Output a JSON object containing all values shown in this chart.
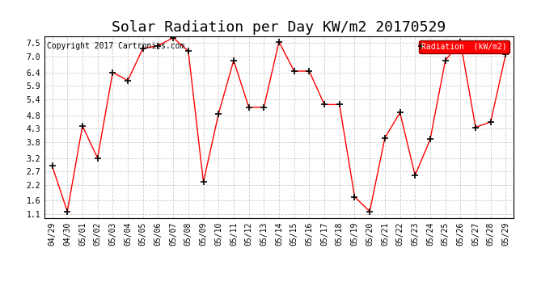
{
  "title": "Solar Radiation per Day KW/m2 20170529",
  "copyright": "Copyright 2017 Cartronics.com",
  "legend_label": "Radiation  (kW/m2)",
  "dates": [
    "04/29",
    "04/30",
    "05/01",
    "05/02",
    "05/03",
    "05/04",
    "05/05",
    "05/06",
    "05/07",
    "05/08",
    "05/09",
    "05/10",
    "05/11",
    "05/12",
    "05/13",
    "05/14",
    "05/15",
    "05/16",
    "05/17",
    "05/18",
    "05/19",
    "05/20",
    "05/21",
    "05/22",
    "05/23",
    "05/24",
    "05/25",
    "05/26",
    "05/27",
    "05/28",
    "05/29"
  ],
  "values": [
    2.9,
    1.2,
    4.4,
    3.2,
    6.4,
    6.1,
    7.3,
    7.4,
    7.7,
    7.2,
    2.3,
    4.85,
    6.85,
    5.1,
    5.1,
    7.55,
    6.45,
    6.45,
    5.2,
    5.2,
    1.75,
    1.2,
    3.95,
    4.9,
    2.55,
    3.9,
    6.85,
    7.55,
    4.35,
    4.55,
    7.1
  ],
  "line_color": "red",
  "marker": "+",
  "marker_color": "black",
  "bg_color": "#ffffff",
  "grid_color": "#cccccc",
  "ylim": [
    0.95,
    7.75
  ],
  "yticks": [
    1.1,
    1.6,
    2.2,
    2.7,
    3.2,
    3.8,
    4.3,
    4.8,
    5.4,
    5.9,
    6.4,
    7.0,
    7.5
  ],
  "title_fontsize": 13,
  "legend_bg": "red",
  "legend_text_color": "white",
  "tick_fontsize": 7,
  "copyright_fontsize": 7
}
